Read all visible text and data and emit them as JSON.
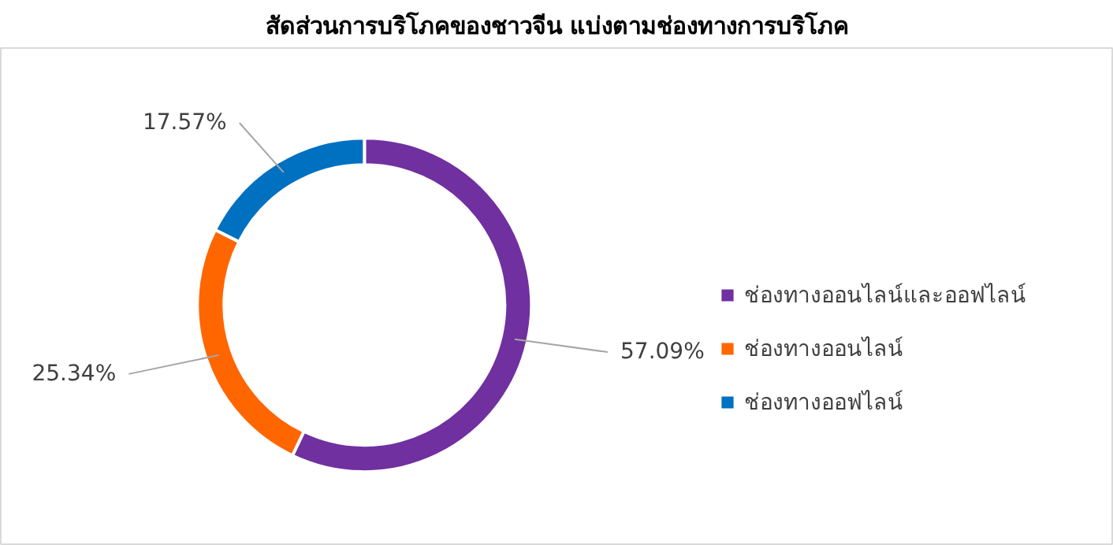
{
  "chart_data": {
    "type": "donut",
    "title": "สัดส่วนการบริโภคของชาวจีน แบ่งตามช่องทางการบริโภค",
    "categories": [
      "ช่องทางออนไลน์และออฟไลน์",
      "ช่องทางออนไลน์",
      "ช่องทางออฟไลน์"
    ],
    "values": [
      57.09,
      25.34,
      17.57
    ],
    "colors": [
      "#7030a0",
      "#ff6600",
      "#0070c0"
    ],
    "value_labels": [
      "57.09%",
      "25.34%",
      "17.57%"
    ],
    "legend": "right"
  }
}
